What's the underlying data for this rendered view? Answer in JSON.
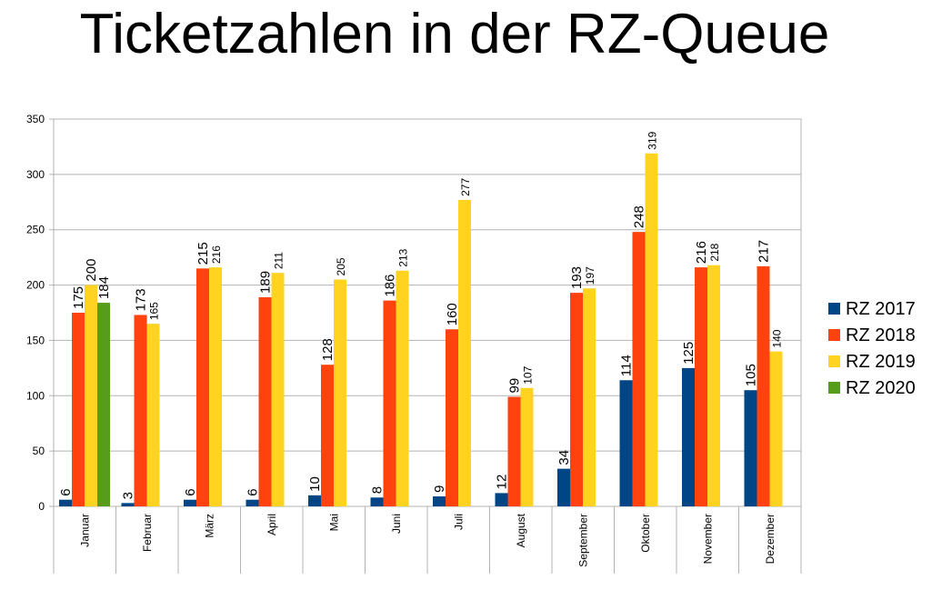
{
  "title": "Ticketzahlen in der RZ-Queue",
  "chart_data": {
    "type": "bar",
    "title": "Ticketzahlen in der RZ-Queue",
    "categories": [
      "Januar",
      "Februar",
      "März",
      "April",
      "Mai",
      "Juni",
      "Juli",
      "August",
      "September",
      "Oktober",
      "November",
      "Dezember"
    ],
    "series": [
      {
        "name": "RZ 2017",
        "color": "#004586",
        "values": [
          6,
          3,
          6,
          6,
          10,
          8,
          9,
          12,
          34,
          114,
          125,
          105
        ]
      },
      {
        "name": "RZ 2018",
        "color": "#ff420e",
        "values": [
          175,
          173,
          215,
          189,
          128,
          186,
          160,
          99,
          193,
          248,
          216,
          217
        ]
      },
      {
        "name": "RZ 2019",
        "color": "#ffd320",
        "values": [
          200,
          165,
          216,
          211,
          205,
          213,
          277,
          107,
          197,
          319,
          218,
          140
        ]
      },
      {
        "name": "RZ 2020",
        "color": "#579d1c",
        "values": [
          184,
          null,
          null,
          null,
          null,
          null,
          null,
          null,
          null,
          null,
          null,
          null
        ]
      }
    ],
    "yticks": [
      0,
      50,
      100,
      150,
      200,
      250,
      300,
      350
    ],
    "ylim": [
      0,
      350
    ],
    "grid": true,
    "legend": "right",
    "xlabel": "",
    "ylabel": ""
  }
}
